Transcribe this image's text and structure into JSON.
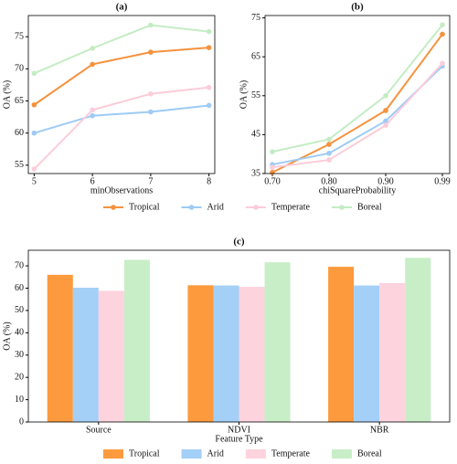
{
  "chart_data": [
    {
      "type": "line",
      "title": "(a)",
      "x_label": "minObservations",
      "y_label": "OA (%)",
      "x": [
        5,
        6,
        7,
        8
      ],
      "xlim": [
        4.9,
        8.1
      ],
      "xticks": [
        5,
        6,
        7,
        8
      ],
      "ylim": [
        53.7,
        78.3
      ],
      "yticks": [
        55,
        60,
        65,
        70,
        75
      ],
      "series": [
        {
          "name": "Tropical",
          "color": "#f5923e",
          "values": [
            64.4,
            70.7,
            72.6,
            73.3
          ]
        },
        {
          "name": "Arid",
          "color": "#9ecbf5",
          "values": [
            60.0,
            62.7,
            63.3,
            64.3
          ]
        },
        {
          "name": "Temperate",
          "color": "#fcccd9",
          "values": [
            54.4,
            63.6,
            66.1,
            67.1
          ]
        },
        {
          "name": "Boreal",
          "color": "#c4ecc4",
          "values": [
            69.3,
            73.2,
            76.8,
            75.8
          ]
        }
      ]
    },
    {
      "type": "line",
      "title": "(b)",
      "x_label": "chiSquareProbability",
      "y_label": "OA (%)",
      "categories": [
        "0.70",
        "0.80",
        "0.90",
        "0.99"
      ],
      "ylim": [
        35,
        75.6
      ],
      "yticks": [
        35,
        45,
        55,
        65,
        75
      ],
      "series": [
        {
          "name": "Tropical",
          "color": "#f5923e",
          "values": [
            35.3,
            42.5,
            51.2,
            70.8
          ]
        },
        {
          "name": "Arid",
          "color": "#9ecbf5",
          "values": [
            37.3,
            40.2,
            48.5,
            62.6
          ]
        },
        {
          "name": "Temperate",
          "color": "#fcccd9",
          "values": [
            36.6,
            38.5,
            47.4,
            63.3
          ]
        },
        {
          "name": "Boreal",
          "color": "#c4ecc4",
          "values": [
            40.6,
            43.8,
            55.0,
            73.2
          ]
        }
      ]
    },
    {
      "type": "bar",
      "title": "(c)",
      "x_label": "Feature Type",
      "y_label": "OA (%)",
      "categories": [
        "Source",
        "NDVI",
        "NBR"
      ],
      "ylim": [
        0,
        77
      ],
      "yticks": [
        0,
        10,
        20,
        30,
        40,
        50,
        60,
        70
      ],
      "series": [
        {
          "name": "Tropical",
          "color": "#fd9a3e",
          "values": [
            66.0,
            61.3,
            69.6
          ]
        },
        {
          "name": "Arid",
          "color": "#a4cff7",
          "values": [
            60.2,
            61.2,
            61.2
          ]
        },
        {
          "name": "Temperate",
          "color": "#fdd3de",
          "values": [
            58.8,
            60.6,
            62.3
          ]
        },
        {
          "name": "Boreal",
          "color": "#c8eec8",
          "values": [
            72.7,
            71.6,
            73.6
          ]
        }
      ]
    }
  ]
}
